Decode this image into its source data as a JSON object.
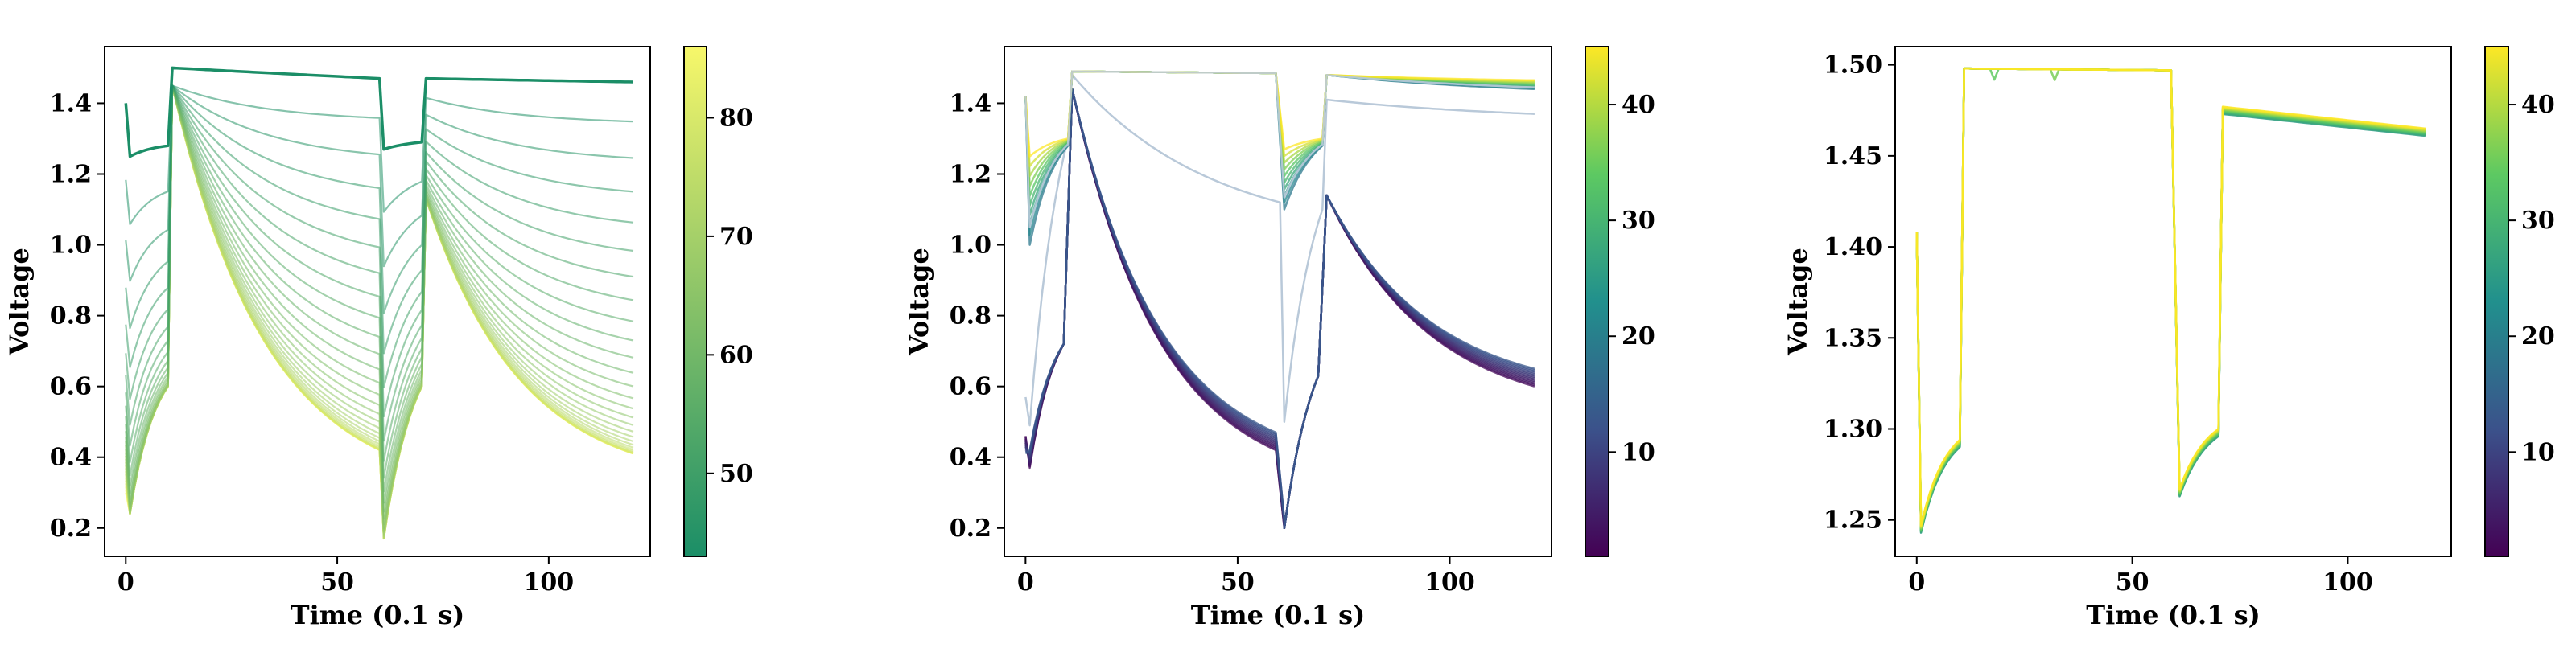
{
  "chart_data": [
    {
      "type": "line",
      "title": "",
      "xlabel": "Time (0.1 s)",
      "ylabel": "Voltage",
      "xlim": [
        -5,
        124
      ],
      "ylim": [
        0.12,
        1.56
      ],
      "xticks": [
        0,
        50,
        100
      ],
      "xtick_labels": [
        "0",
        "50",
        "100"
      ],
      "yticks": [
        0.2,
        0.4,
        0.6,
        0.8,
        1.0,
        1.2,
        1.4
      ],
      "ytick_labels": [
        "0.2",
        "0.4",
        "0.6",
        "0.8",
        "1.0",
        "1.2",
        "1.4"
      ],
      "colorbar": {
        "colormap": "summer_r",
        "colors": [
          "#1b8e67",
          "#f7f76a"
        ],
        "range": [
          43,
          86
        ],
        "ticks": [
          50,
          60,
          70,
          80
        ],
        "tick_labels": [
          "50",
          "60",
          "70",
          "80"
        ]
      },
      "series_description": "Cycle-colored voltage curves",
      "series_params": {
        "count": 30,
        "c_min": 43,
        "c_max": 86,
        "phase1_end": [
          0.6,
          1.3
        ],
        "decay_end": [
          0.42,
          1.47
        ],
        "second_drop": [
          0.17,
          1.27
        ],
        "final_end": [
          0.41,
          1.46
        ]
      }
    },
    {
      "type": "line",
      "title": "",
      "xlabel": "Time (0.1 s)",
      "ylabel": "Voltage",
      "xlim": [
        -5,
        124
      ],
      "ylim": [
        0.12,
        1.56
      ],
      "xticks": [
        0,
        50,
        100
      ],
      "xtick_labels": [
        "0",
        "50",
        "100"
      ],
      "yticks": [
        0.2,
        0.4,
        0.6,
        0.8,
        1.0,
        1.2,
        1.4
      ],
      "ytick_labels": [
        "0.2",
        "0.4",
        "0.6",
        "0.8",
        "1.0",
        "1.2",
        "1.4"
      ],
      "colorbar": {
        "colormap": "viridis",
        "colors": [
          "#440154",
          "#3b528b",
          "#21908d",
          "#5dc962",
          "#fde725"
        ],
        "range": [
          1,
          45
        ],
        "ticks": [
          10,
          20,
          30,
          40
        ],
        "tick_labels": [
          "10",
          "20",
          "30",
          "40"
        ]
      },
      "series_description": "Cycle-colored voltage curves",
      "series_params": {
        "count": 25,
        "c_min": 1,
        "c_max": 45
      }
    },
    {
      "type": "line",
      "title": "",
      "xlabel": "Time (0.1 s)",
      "ylabel": "Voltage",
      "xlim": [
        -5,
        124
      ],
      "ylim": [
        1.23,
        1.51
      ],
      "xticks": [
        0,
        50,
        100
      ],
      "xtick_labels": [
        "0",
        "50",
        "100"
      ],
      "yticks": [
        1.25,
        1.3,
        1.35,
        1.4,
        1.45,
        1.5
      ],
      "ytick_labels": [
        "1.25",
        "1.30",
        "1.35",
        "1.40",
        "1.45",
        "1.50"
      ],
      "colorbar": {
        "colormap": "viridis",
        "colors": [
          "#440154",
          "#3b528b",
          "#21908d",
          "#5dc962",
          "#fde725"
        ],
        "range": [
          1,
          45
        ],
        "ticks": [
          10,
          20,
          30,
          40
        ],
        "tick_labels": [
          "10",
          "20",
          "30",
          "40"
        ]
      },
      "series_description": "Cycle-colored voltage curves",
      "series_params": {
        "count": 12,
        "c_min": 1,
        "c_max": 45
      }
    }
  ]
}
